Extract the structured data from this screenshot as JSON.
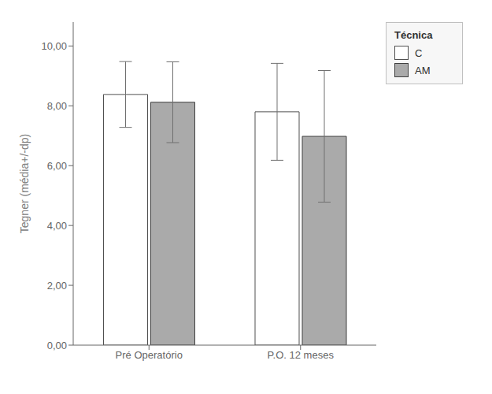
{
  "chart_data": {
    "type": "bar",
    "categories": [
      "Pré Operatório",
      "P.O. 12 meses"
    ],
    "series": [
      {
        "name": "C",
        "color": "#ffffff",
        "values": [
          8.38,
          7.8
        ],
        "errors": [
          1.1,
          1.62
        ]
      },
      {
        "name": "AM",
        "color": "#aaaaaa",
        "values": [
          8.12,
          6.98
        ],
        "errors": [
          1.35,
          2.2
        ]
      }
    ],
    "ylabel": "Tegner (média+/-dp)",
    "ylim": [
      0,
      10.8
    ],
    "yticks": [
      {
        "value": 0.0,
        "label": "0,00"
      },
      {
        "value": 2.0,
        "label": "2,00"
      },
      {
        "value": 4.0,
        "label": "4,00"
      },
      {
        "value": 6.0,
        "label": "6,00"
      },
      {
        "value": 8.0,
        "label": "8,00"
      },
      {
        "value": 10.0,
        "label": "10,00"
      }
    ],
    "legend_title": "Técnica",
    "legend": "right",
    "grid": false
  }
}
